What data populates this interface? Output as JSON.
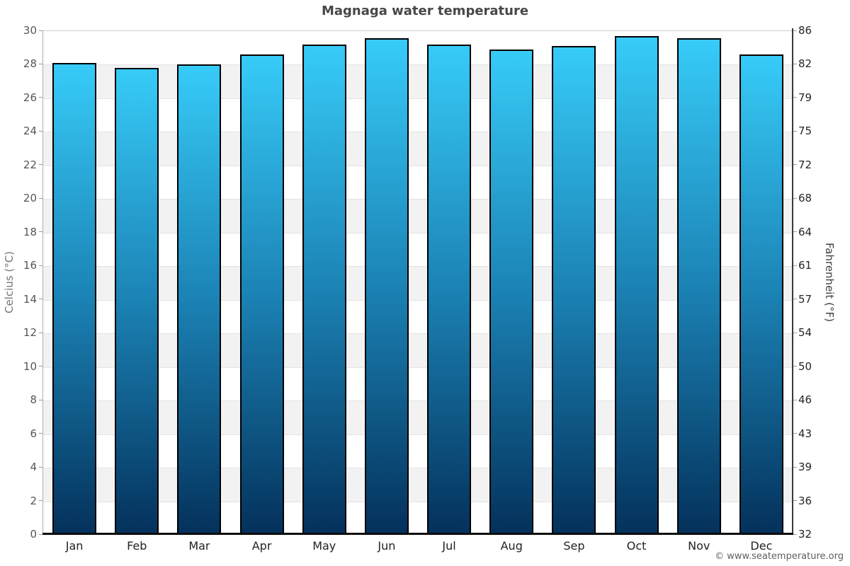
{
  "title": "Magnaga water temperature",
  "footer": {
    "copyright": "© www.seatemperature.org"
  },
  "axes": {
    "left": {
      "label": "Celcius (°C)"
    },
    "right": {
      "label": "Fahrenheit (°F)"
    }
  },
  "chart_data": {
    "type": "bar",
    "title": "Magnaga water temperature",
    "categories": [
      "Jan",
      "Feb",
      "Mar",
      "Apr",
      "May",
      "Jun",
      "Jul",
      "Aug",
      "Sep",
      "Oct",
      "Nov",
      "Dec"
    ],
    "values": [
      28.1,
      27.8,
      28.0,
      28.6,
      29.2,
      29.6,
      29.2,
      28.9,
      29.1,
      29.7,
      29.6,
      28.6
    ],
    "value_unit": "°C",
    "ylabel_left": "Celcius (°C)",
    "ylabel_right": "Fahrenheit (°F)",
    "ylim_left": [
      0,
      30
    ],
    "ylim_right": [
      32,
      86
    ],
    "left_ticks_top_to_bottom": [
      30,
      28,
      26,
      24,
      22,
      20,
      18,
      16,
      14,
      12,
      10,
      8,
      6,
      4,
      2,
      0
    ],
    "right_ticks_top_to_bottom": [
      86,
      82,
      79,
      75,
      72,
      68,
      64,
      61,
      57,
      54,
      50,
      46,
      43,
      39,
      36,
      32
    ],
    "grid": "horizontal alternating white/gray bands every 2°C with thin gridlines",
    "legend": "none",
    "colors": {
      "bar_gradient_top": "#37cbf8",
      "bar_gradient_mid": "#1b82b4",
      "bar_gradient_bottom": "#04315b",
      "bar_border": "#000000",
      "band_alt": "#f2f2f2",
      "gridline": "#e3e3e3",
      "axis_bottom": "#0d0d0d",
      "title_color": "#474747"
    }
  }
}
